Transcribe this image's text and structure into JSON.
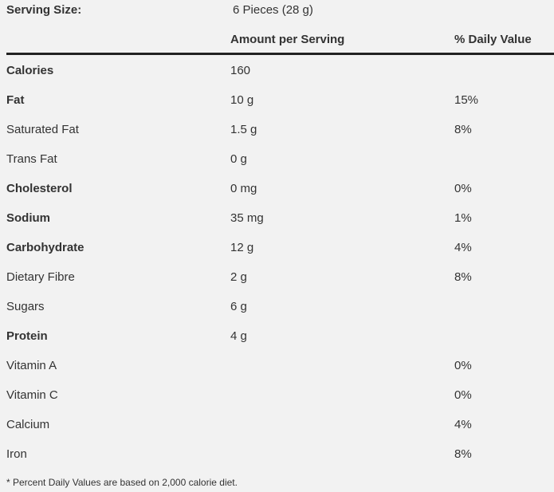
{
  "serving": {
    "label": "Serving Size:",
    "value": "6 Pieces (28 g)"
  },
  "header": {
    "amount": "Amount per Serving",
    "daily_value": "% Daily Value"
  },
  "rows": [
    {
      "name": "Calories",
      "amount": "160",
      "dv": "",
      "bold": true
    },
    {
      "name": "Fat",
      "amount": "10 g",
      "dv": "15%",
      "bold": true
    },
    {
      "name": "Saturated Fat",
      "amount": "1.5 g",
      "dv": "8%",
      "bold": false
    },
    {
      "name": "Trans Fat",
      "amount": "0 g",
      "dv": "",
      "bold": false
    },
    {
      "name": "Cholesterol",
      "amount": "0 mg",
      "dv": "0%",
      "bold": true
    },
    {
      "name": "Sodium",
      "amount": "35 mg",
      "dv": "1%",
      "bold": true
    },
    {
      "name": "Carbohydrate",
      "amount": "12 g",
      "dv": "4%",
      "bold": true
    },
    {
      "name": "Dietary Fibre",
      "amount": "2 g",
      "dv": "8%",
      "bold": false
    },
    {
      "name": "Sugars",
      "amount": "6 g",
      "dv": "",
      "bold": false
    },
    {
      "name": "Protein",
      "amount": "4 g",
      "dv": "",
      "bold": true
    },
    {
      "name": "Vitamin A",
      "amount": "",
      "dv": "0%",
      "bold": false
    },
    {
      "name": "Vitamin C",
      "amount": "",
      "dv": "0%",
      "bold": false
    },
    {
      "name": "Calcium",
      "amount": "",
      "dv": "4%",
      "bold": false
    },
    {
      "name": "Iron",
      "amount": "",
      "dv": "8%",
      "bold": false
    }
  ],
  "footnote": "* Percent Daily Values are based on 2,000 calorie diet.",
  "colors": {
    "background": "#f2f2f2",
    "text": "#333333",
    "rule": "#222222"
  }
}
